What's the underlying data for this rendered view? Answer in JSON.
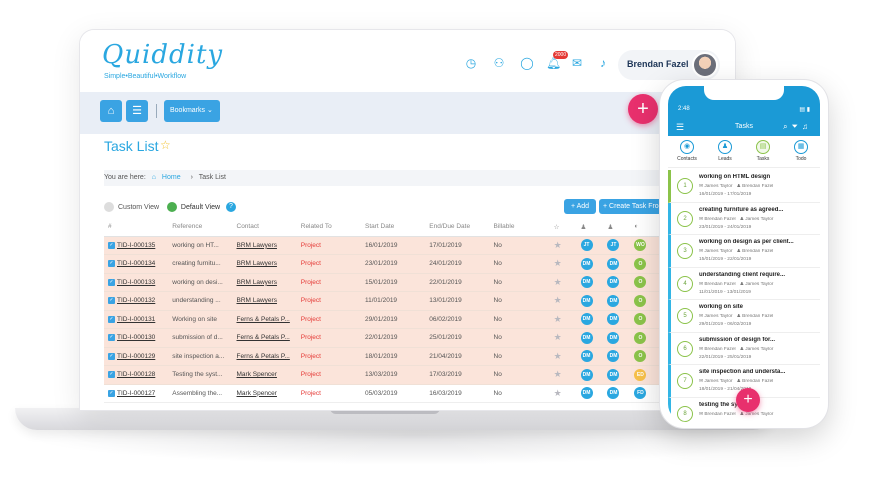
{
  "app": {
    "logo": "Quiddity",
    "tagline": "Simple•Beautiful•Workflow",
    "user_name": "Brendan Fazel",
    "notification_count": "2000"
  },
  "toolbar": {
    "bookmarks_label": "Bookmarks ⌄"
  },
  "page": {
    "title": "Task List",
    "breadcrumb_prefix": "You are here:",
    "breadcrumb_home": "Home",
    "breadcrumb_sep": "›",
    "breadcrumb_current": "Task List"
  },
  "views": {
    "custom": "Custom View",
    "default": "Default View"
  },
  "actions": {
    "add": "+ Add",
    "create": "+ Create Task Fro"
  },
  "table": {
    "headers": [
      "#",
      "Reference",
      "Contact",
      "Related To",
      "Start Date",
      "End/Due Date",
      "Billable",
      "☆",
      "♟",
      "♟",
      "◐",
      "Act"
    ],
    "rows": [
      {
        "id": "TID-I-000135",
        "ref": "working on HT...",
        "contact": "BRM Lawyers",
        "related": "Project",
        "start": "16/01/2019",
        "end": "17/01/2019",
        "billable": "No",
        "a": "JT",
        "b": "JT",
        "c": "WO",
        "style": "pink"
      },
      {
        "id": "TID-I-000134",
        "ref": "creating furnitu...",
        "contact": "BRM Lawyers",
        "related": "Project",
        "start": "23/01/2019",
        "end": "24/01/2019",
        "billable": "No",
        "a": "DM",
        "b": "DM",
        "c": "O",
        "style": "pink"
      },
      {
        "id": "TID-I-000133",
        "ref": "working on desi...",
        "contact": "BRM Lawyers",
        "related": "Project",
        "start": "15/01/2019",
        "end": "22/01/2019",
        "billable": "No",
        "a": "DM",
        "b": "DM",
        "c": "O",
        "style": "pink"
      },
      {
        "id": "TID-I-000132",
        "ref": "understanding ...",
        "contact": "BRM Lawyers",
        "related": "Project",
        "start": "11/01/2019",
        "end": "13/01/2019",
        "billable": "No",
        "a": "DM",
        "b": "DM",
        "c": "O",
        "style": "pink"
      },
      {
        "id": "TID-I-000131",
        "ref": "Working on site",
        "contact": "Ferns & Petals P...",
        "related": "Project",
        "start": "29/01/2019",
        "end": "06/02/2019",
        "billable": "No",
        "a": "DM",
        "b": "DM",
        "c": "O",
        "style": "pink"
      },
      {
        "id": "TID-I-000130",
        "ref": "submission of d...",
        "contact": "Ferns & Petals P...",
        "related": "Project",
        "start": "22/01/2019",
        "end": "25/01/2019",
        "billable": "No",
        "a": "DM",
        "b": "DM",
        "c": "O",
        "style": "pink"
      },
      {
        "id": "TID-I-000129",
        "ref": "site inspection a...",
        "contact": "Ferns & Petals P...",
        "related": "Project",
        "start": "18/01/2019",
        "end": "21/04/2019",
        "billable": "No",
        "a": "DM",
        "b": "DM",
        "c": "O",
        "style": "pink"
      },
      {
        "id": "TID-I-000128",
        "ref": "Testing the syst...",
        "contact": "Mark Spencer",
        "related": "Project",
        "start": "13/03/2019",
        "end": "17/03/2019",
        "billable": "No",
        "a": "DM",
        "b": "DM",
        "c": "ED",
        "style": "pink"
      },
      {
        "id": "TID-I-000127",
        "ref": "Assembling the...",
        "contact": "Mark Spencer",
        "related": "Project",
        "start": "05/03/2019",
        "end": "16/03/2019",
        "billable": "No",
        "a": "DM",
        "b": "DM",
        "c": "FD",
        "style": "white"
      }
    ]
  },
  "colors": {
    "accent": "#2aa7e0",
    "pink_row": "#fbe4da",
    "fab": "#e8306d",
    "green": "#8bc34a",
    "orange": "#f7c04a"
  },
  "phone": {
    "time": "2:48",
    "battery": "▤ ▮",
    "title": "Tasks",
    "tabs": [
      "Contacts",
      "Leads",
      "Tasks",
      "Todo"
    ],
    "items": [
      {
        "n": "1",
        "title": "working on  HTML design",
        "a": "James Taylor",
        "b": "Brendan Fazel",
        "dates": "16/01/2019 - 17/01/2019"
      },
      {
        "n": "2",
        "title": "creating furniture as agreed...",
        "a": "Brendan Fazel",
        "b": "James Taylor",
        "dates": "23/01/2019 - 24/01/2019"
      },
      {
        "n": "3",
        "title": "working on design as per client...",
        "a": "James Taylor",
        "b": "Brendan Fazel",
        "dates": "15/01/2019 - 22/01/2019"
      },
      {
        "n": "4",
        "title": "understanding client require...",
        "a": "Brendan Fazel",
        "b": "James Taylor",
        "dates": "11/01/2019 - 13/01/2019"
      },
      {
        "n": "5",
        "title": "working on site",
        "a": "James Taylor",
        "b": "Brendan Fazel",
        "dates": "29/01/2019 - 06/02/2019"
      },
      {
        "n": "6",
        "title": "submission of design for...",
        "a": "Brendan Fazel",
        "b": "James Taylor",
        "dates": "22/01/2019 - 25/01/2019"
      },
      {
        "n": "7",
        "title": "site inspection and understa...",
        "a": "James Taylor",
        "b": "Brendan Fazel",
        "dates": "18/01/2019 - 21/04/2019"
      },
      {
        "n": "8",
        "title": "testing the system",
        "a": "Brendan Fazel",
        "b": "James Taylor",
        "dates": ""
      }
    ]
  }
}
